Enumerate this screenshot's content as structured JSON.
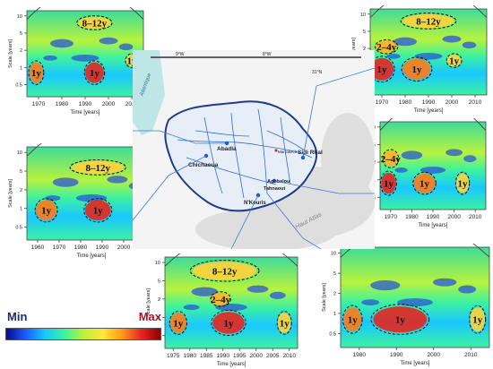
{
  "panels": [
    {
      "id": "top-left",
      "x_ticks": [
        "1970",
        "1980",
        "1990",
        "2000",
        "2010"
      ],
      "y_ticks": [
        "10",
        "5",
        "2",
        "1",
        "0.5"
      ],
      "xlabel": "Time [years]",
      "ylabel": "Scale [years]",
      "bands": [
        "8–12y",
        "1y",
        "1y",
        "1y"
      ]
    },
    {
      "id": "top-right",
      "x_ticks": [
        "1970",
        "1980",
        "1990",
        "2000",
        "2010"
      ],
      "y_ticks": [
        "10",
        "5",
        "2",
        "1",
        "0.5"
      ],
      "xlabel": "Time [years]",
      "ylabel": "Scale [years]",
      "bands": [
        "8–12y",
        "2–4y",
        "1y",
        "1y",
        "1y"
      ]
    },
    {
      "id": "mid-left",
      "x_ticks": [
        "1960",
        "1970",
        "1980",
        "1990",
        "2000",
        "2010"
      ],
      "y_ticks": [
        "10",
        "5",
        "2",
        "1",
        "0.5"
      ],
      "xlabel": "Time [years]",
      "ylabel": "Scale [years]",
      "bands": [
        "8–12y",
        "1y",
        "1y",
        "1y"
      ]
    },
    {
      "id": "mid-right",
      "x_ticks": [
        "1970",
        "1980",
        "1990",
        "2000",
        "2010"
      ],
      "y_ticks": [
        "10",
        "5",
        "2",
        "1",
        "0.5"
      ],
      "xlabel": "Time [years]",
      "ylabel": "Scale [years]",
      "bands": [
        "2–4y",
        "1y",
        "1y",
        "1y"
      ]
    },
    {
      "id": "bottom-mid",
      "x_ticks": [
        "1975",
        "1980",
        "1985",
        "1990",
        "1995",
        "2000",
        "2005",
        "2010"
      ],
      "y_ticks": [
        "10",
        "5",
        "2",
        "1",
        "0.5"
      ],
      "xlabel": "Time [years]",
      "ylabel": "Scale [years]",
      "bands": [
        "8–12y",
        "2–4y",
        "1y",
        "1y",
        "1y"
      ]
    },
    {
      "id": "bottom-right",
      "x_ticks": [
        "1980",
        "1990",
        "2000",
        "2010"
      ],
      "y_ticks": [
        "10",
        "5",
        "2",
        "1",
        "0.5"
      ],
      "xlabel": "Time [years]",
      "ylabel": "Scale [years]",
      "bands": [
        "1y",
        "1y",
        "1y"
      ]
    }
  ],
  "map": {
    "stations": [
      "Abadla",
      "Chichaoua",
      "Marrakech",
      "Sidi Rhal",
      "Aghbalou",
      "Tahnaout",
      "N'Kouris"
    ],
    "regions": [
      "Atlantique",
      "Haut Atlas"
    ],
    "coords": [
      "9°W",
      "8°W",
      "31°N"
    ]
  },
  "legend": {
    "min": "Min",
    "max": "Max"
  },
  "colors": {
    "low": "#0a0a8c",
    "mid": "#3cf2a0",
    "high": "#e6261f",
    "map_water": "#bfe6e6",
    "river": "#2a6fd6",
    "basin": "#1f3c8c"
  }
}
